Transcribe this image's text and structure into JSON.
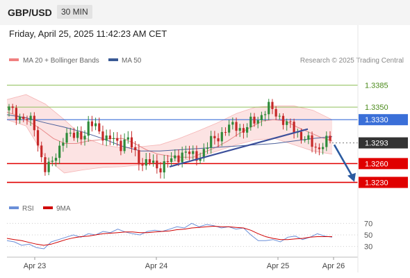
{
  "header": {
    "pair": "GBP/USD",
    "timeframe": "30 MIN"
  },
  "timestamp": "Friday, April 25, 2025 11:42:23 AM CET",
  "copyright": "Research © 2025 Trading Central",
  "colors": {
    "bb": "#f08080",
    "ma50": "#3a5a95",
    "resistance": "#8fbf5a",
    "pivot": "#3a6fd8",
    "support": "#e00000",
    "current": "#333333",
    "rsi": "#6a8fd8",
    "rsi_ma": "#d00000",
    "trend": "#3b4f9a",
    "arrow": "#2b5aa0"
  },
  "chart_data": [
    {
      "type": "candlestick",
      "legend": [
        "MA 20 + Bollinger Bands",
        "MA 50"
      ],
      "legend_placement": "top-left",
      "x_ticks": [
        "Apr 23",
        "Apr 24",
        "Apr 25",
        "Apr 26"
      ],
      "ylim": [
        1.3205,
        1.341
      ],
      "grid": false,
      "levels": [
        {
          "value": 1.3385,
          "label": "1.3385",
          "kind": "resistance"
        },
        {
          "value": 1.335,
          "label": "1.3350",
          "kind": "resistance"
        },
        {
          "value": 1.333,
          "label": "1.3330",
          "kind": "pivot"
        },
        {
          "value": 1.3293,
          "label": "1.3293",
          "kind": "current"
        },
        {
          "value": 1.326,
          "label": "1.3260",
          "kind": "support"
        },
        {
          "value": 1.323,
          "label": "1.3230",
          "kind": "support"
        }
      ],
      "close_path": [
        1.3345,
        1.334,
        1.3335,
        1.3328,
        1.3322,
        1.328,
        1.3245,
        1.3262,
        1.3285,
        1.3305,
        1.33,
        1.3312,
        1.3302,
        1.3318,
        1.3325,
        1.3308,
        1.3292,
        1.3302,
        1.329,
        1.3298,
        1.3285,
        1.3268,
        1.3258,
        1.3262,
        1.3255,
        1.3258,
        1.3262,
        1.327,
        1.3278,
        1.3275,
        1.327,
        1.3275,
        1.3285,
        1.3298,
        1.3306,
        1.3312,
        1.3318,
        1.3322,
        1.3312,
        1.3322,
        1.333,
        1.334,
        1.3348,
        1.3342,
        1.3335,
        1.3322,
        1.3315,
        1.3308,
        1.33,
        1.3288,
        1.3283,
        1.3298,
        1.3293
      ],
      "ma20_path": [
        1.3342,
        1.3336,
        1.3326,
        1.3314,
        1.33,
        1.3292,
        1.3292,
        1.3296,
        1.3298,
        1.33,
        1.33,
        1.3292,
        1.3282,
        1.3275,
        1.3272,
        1.327,
        1.327,
        1.3278,
        1.3286,
        1.3296,
        1.3308,
        1.3318,
        1.3328,
        1.333,
        1.3328,
        1.3318,
        1.331,
        1.3302,
        1.3296
      ],
      "ma50_path": [
        1.3338,
        1.3333,
        1.3325,
        1.3318,
        1.331,
        1.33,
        1.3288,
        1.328,
        1.328,
        1.3282,
        1.3284,
        1.3286,
        1.3288,
        1.329,
        1.3292,
        1.3296,
        1.33,
        1.3303
      ],
      "bb_upper": [
        1.3362,
        1.337,
        1.3355,
        1.333,
        1.3302,
        1.329,
        1.3285,
        1.3287,
        1.329,
        1.33,
        1.3312,
        1.3325,
        1.334,
        1.335,
        1.3352,
        1.3352,
        1.3345,
        1.333
      ],
      "bb_lower": [
        1.333,
        1.332,
        1.327,
        1.3245,
        1.325,
        1.3254,
        1.3255,
        1.3258,
        1.3262,
        1.3264,
        1.327,
        1.328,
        1.329,
        1.3298,
        1.33,
        1.329,
        1.328,
        1.3275
      ],
      "trendline": [
        1.3255,
        1.3315
      ]
    },
    {
      "type": "line",
      "legend": [
        "RSI",
        "9MA"
      ],
      "ylim": [
        20,
        80
      ],
      "y_ticks": [
        70,
        50,
        30
      ],
      "rsi": [
        40,
        38,
        32,
        34,
        28,
        26,
        38,
        42,
        46,
        50,
        46,
        52,
        50,
        56,
        54,
        60,
        55,
        52,
        50,
        56,
        58,
        56,
        60,
        64,
        62,
        70,
        64,
        68,
        66,
        62,
        64,
        60,
        62,
        50,
        40,
        40,
        42,
        38,
        46,
        48,
        42,
        46,
        52,
        48,
        46
      ],
      "rsi_ma": [
        44,
        42,
        40,
        37,
        34,
        32,
        34,
        38,
        42,
        45,
        47,
        48,
        50,
        52,
        53,
        54,
        55,
        55,
        54,
        54,
        55,
        56,
        57,
        59,
        60,
        62,
        63,
        64,
        65,
        64,
        64,
        63,
        62,
        58,
        52,
        47,
        44,
        42,
        42,
        43,
        44,
        46,
        47,
        47,
        47
      ]
    }
  ]
}
